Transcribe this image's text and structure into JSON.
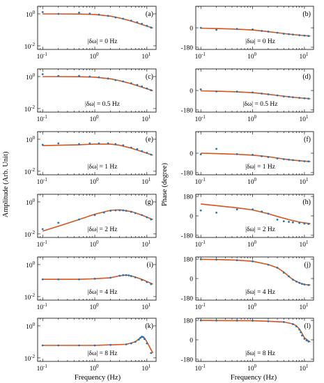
{
  "figure": {
    "ylabel_left": "Amplitude (Arb. Unit)",
    "ylabel_right": "Phase (degree)",
    "xlabel": "Frequency (Hz)",
    "x_ticks": [
      "10",
      "10",
      "10"
    ],
    "x_tick_exponents": [
      "-1",
      "0",
      "1"
    ],
    "amp_ticks": [
      "10",
      "10"
    ],
    "amp_tick_exponents": [
      "0",
      "-2"
    ],
    "phase_ticks": [
      "180",
      "0",
      "-180"
    ],
    "phase_ticks_top_only": [
      "180",
      "0"
    ],
    "colors": {
      "fit_line": "#d9531a",
      "data_points": "#1f77b4",
      "axes": "#000000"
    }
  },
  "chart_data": [
    {
      "panel": "(a)",
      "type": "line",
      "quantity": "amplitude",
      "label": "|δω| = 0 Hz",
      "xscale": "log",
      "yscale": "log",
      "xlim": [
        0.08,
        15
      ],
      "ylim": [
        0.006,
        3
      ],
      "series": [
        {
          "kind": "fit",
          "x": [
            0.1,
            0.2,
            0.5,
            1,
            2,
            3,
            5,
            8,
            13
          ],
          "values": [
            1.0,
            1.0,
            0.98,
            0.92,
            0.72,
            0.55,
            0.36,
            0.22,
            0.13
          ]
        },
        {
          "kind": "data",
          "x": [
            0.1,
            0.2,
            0.5,
            0.8,
            1.2,
            1.8,
            2.5,
            3.5,
            5,
            6.5,
            8,
            10,
            12
          ],
          "values": [
            1.3,
            1.0,
            1.2,
            1.05,
            0.9,
            0.75,
            0.6,
            0.5,
            0.38,
            0.3,
            0.24,
            0.18,
            0.14
          ]
        }
      ]
    },
    {
      "panel": "(b)",
      "type": "line",
      "quantity": "phase",
      "label": "|δω| = 0 Hz",
      "xscale": "log",
      "xlim": [
        0.08,
        15
      ],
      "ylim": [
        -200,
        200
      ],
      "series": [
        {
          "kind": "fit",
          "x": [
            0.1,
            0.2,
            0.5,
            1,
            2,
            3,
            5,
            8,
            13
          ],
          "values": [
            -3,
            -6,
            -12,
            -20,
            -35,
            -45,
            -58,
            -68,
            -76
          ]
        },
        {
          "kind": "data",
          "x": [
            0.1,
            0.2,
            0.5,
            1,
            1.5,
            2,
            3,
            4,
            5,
            6,
            8,
            10,
            12
          ],
          "values": [
            0,
            -18,
            -10,
            -15,
            -28,
            -35,
            -45,
            -55,
            -58,
            -62,
            -68,
            -72,
            -75
          ]
        }
      ]
    },
    {
      "panel": "(c)",
      "type": "line",
      "quantity": "amplitude",
      "label": "|δω| = 0.5 Hz",
      "xscale": "log",
      "yscale": "log",
      "xlim": [
        0.08,
        15
      ],
      "ylim": [
        0.006,
        3
      ],
      "series": [
        {
          "kind": "fit",
          "x": [
            0.1,
            0.2,
            0.5,
            1,
            2,
            3,
            5,
            8,
            13
          ],
          "values": [
            1.0,
            1.0,
            0.98,
            0.92,
            0.72,
            0.55,
            0.36,
            0.22,
            0.13
          ]
        },
        {
          "kind": "data",
          "x": [
            0.1,
            0.2,
            0.5,
            0.8,
            1.2,
            1.8,
            2.5,
            3.5,
            5,
            6.5,
            8,
            10,
            12
          ],
          "values": [
            1.4,
            1.1,
            1.1,
            1.0,
            0.9,
            0.75,
            0.6,
            0.5,
            0.38,
            0.3,
            0.24,
            0.18,
            0.14
          ]
        }
      ]
    },
    {
      "panel": "(d)",
      "type": "line",
      "quantity": "phase",
      "label": "|δω| = 0.5 Hz",
      "xscale": "log",
      "xlim": [
        0.08,
        15
      ],
      "ylim": [
        -200,
        200
      ],
      "series": [
        {
          "kind": "fit",
          "x": [
            0.1,
            0.2,
            0.5,
            1,
            2,
            3,
            5,
            8,
            13
          ],
          "values": [
            -3,
            -6,
            -12,
            -20,
            -35,
            -45,
            -58,
            -68,
            -76
          ]
        },
        {
          "kind": "data",
          "x": [
            0.1,
            0.2,
            0.5,
            1,
            1.5,
            2,
            3,
            4,
            5,
            6,
            8,
            10,
            12
          ],
          "values": [
            10,
            -8,
            -10,
            -18,
            -28,
            -35,
            -45,
            -55,
            -58,
            -62,
            -68,
            -72,
            -75
          ]
        }
      ]
    },
    {
      "panel": "(e)",
      "type": "line",
      "quantity": "amplitude",
      "label": "|δω| = 1 Hz",
      "xscale": "log",
      "yscale": "log",
      "xlim": [
        0.08,
        15
      ],
      "ylim": [
        0.006,
        3
      ],
      "series": [
        {
          "kind": "fit",
          "x": [
            0.1,
            0.2,
            0.5,
            1,
            2,
            3,
            5,
            8,
            13
          ],
          "values": [
            0.4,
            0.42,
            0.45,
            0.5,
            0.5,
            0.42,
            0.28,
            0.17,
            0.1
          ]
        },
        {
          "kind": "data",
          "x": [
            0.1,
            0.2,
            0.5,
            0.8,
            1.2,
            1.8,
            2.5,
            3.5,
            5,
            6.5,
            8,
            10,
            12
          ],
          "values": [
            0.45,
            0.55,
            0.5,
            0.55,
            0.55,
            0.55,
            0.5,
            0.42,
            0.3,
            0.24,
            0.18,
            0.14,
            0.11
          ]
        }
      ]
    },
    {
      "panel": "(f)",
      "type": "line",
      "quantity": "phase",
      "label": "|δω| = 1 Hz",
      "xscale": "log",
      "xlim": [
        0.08,
        15
      ],
      "ylim": [
        -200,
        200
      ],
      "series": [
        {
          "kind": "fit",
          "x": [
            0.1,
            0.2,
            0.5,
            1,
            2,
            3,
            5,
            8,
            13
          ],
          "values": [
            0,
            -4,
            -10,
            -18,
            -32,
            -45,
            -60,
            -70,
            -78
          ]
        },
        {
          "kind": "data",
          "x": [
            0.1,
            0.2,
            0.5,
            1,
            1.5,
            2,
            3,
            4,
            5,
            6,
            8,
            10,
            12
          ],
          "values": [
            -10,
            40,
            -8,
            -15,
            -28,
            -36,
            -48,
            -56,
            -60,
            -64,
            -70,
            -74,
            -76
          ]
        }
      ]
    },
    {
      "panel": "(g)",
      "type": "line",
      "quantity": "amplitude",
      "label": "|δω| = 2 Hz",
      "xscale": "log",
      "yscale": "log",
      "xlim": [
        0.08,
        15
      ],
      "ylim": [
        0.006,
        3
      ],
      "series": [
        {
          "kind": "fit",
          "x": [
            0.1,
            0.2,
            0.5,
            1,
            2,
            3,
            5,
            8,
            13
          ],
          "values": [
            0.015,
            0.03,
            0.08,
            0.17,
            0.3,
            0.32,
            0.25,
            0.15,
            0.08
          ]
        },
        {
          "kind": "data",
          "x": [
            0.1,
            0.2,
            0.5,
            1,
            1.5,
            2,
            2.5,
            3,
            3.5,
            4,
            5,
            6,
            8,
            10,
            12
          ],
          "values": [
            0.02,
            0.05,
            0.08,
            0.15,
            0.22,
            0.28,
            0.3,
            0.3,
            0.3,
            0.28,
            0.24,
            0.2,
            0.15,
            0.11,
            0.08
          ]
        }
      ]
    },
    {
      "panel": "(h)",
      "type": "line",
      "quantity": "phase",
      "label": "|δω| = 2 Hz",
      "xscale": "log",
      "xlim": [
        0.08,
        15
      ],
      "ylim": [
        -200,
        200
      ],
      "series": [
        {
          "kind": "fit",
          "x": [
            0.1,
            0.2,
            0.5,
            1,
            2,
            3,
            5,
            8,
            13
          ],
          "values": [
            110,
            95,
            75,
            55,
            20,
            -5,
            -35,
            -58,
            -72
          ]
        },
        {
          "kind": "data",
          "x": [
            0.1,
            0.2,
            0.5,
            1,
            1.5,
            2,
            3,
            4,
            5,
            6,
            8,
            10,
            12
          ],
          "values": [
            50,
            30,
            60,
            60,
            40,
            20,
            -35,
            -50,
            -55,
            -60,
            -65,
            -72,
            -75
          ]
        }
      ]
    },
    {
      "panel": "(i)",
      "type": "line",
      "quantity": "amplitude",
      "label": "|δω| = 4 Hz",
      "xscale": "log",
      "yscale": "log",
      "xlim": [
        0.08,
        15
      ],
      "ylim": [
        0.006,
        3
      ],
      "series": [
        {
          "kind": "fit",
          "x": [
            0.1,
            0.2,
            0.5,
            1,
            2,
            3,
            4,
            5,
            8,
            13
          ],
          "values": [
            0.12,
            0.12,
            0.12,
            0.13,
            0.15,
            0.2,
            0.22,
            0.2,
            0.12,
            0.06
          ]
        },
        {
          "kind": "data",
          "x": [
            0.1,
            0.2,
            0.5,
            1,
            2,
            3,
            3.5,
            4,
            4.5,
            5,
            6,
            8,
            10,
            12
          ],
          "values": [
            0.12,
            0.12,
            0.12,
            0.13,
            0.15,
            0.2,
            0.22,
            0.22,
            0.21,
            0.19,
            0.16,
            0.11,
            0.08,
            0.06
          ]
        }
      ]
    },
    {
      "panel": "(j)",
      "type": "line",
      "quantity": "phase",
      "label": "|δω| = 4 Hz",
      "xscale": "log",
      "xlim": [
        0.08,
        15
      ],
      "ylim": [
        -200,
        200
      ],
      "series": [
        {
          "kind": "fit",
          "x": [
            0.1,
            0.2,
            0.5,
            1,
            2,
            3,
            4,
            5,
            6,
            8,
            10,
            13
          ],
          "values": [
            178,
            176,
            170,
            160,
            130,
            100,
            60,
            20,
            -10,
            -40,
            -55,
            -60
          ]
        },
        {
          "kind": "data",
          "x": [
            0.1,
            0.2,
            0.5,
            1,
            2,
            3,
            4,
            5,
            6,
            7,
            8,
            9,
            10,
            12
          ],
          "values": [
            178,
            176,
            170,
            160,
            128,
            100,
            55,
            20,
            -10,
            -28,
            -40,
            -50,
            -55,
            -60
          ]
        }
      ]
    },
    {
      "panel": "(k)",
      "type": "line",
      "quantity": "amplitude",
      "label": "|δω| = 8 Hz",
      "xscale": "log",
      "yscale": "log",
      "xlim": [
        0.08,
        15
      ],
      "ylim": [
        0.006,
        3
      ],
      "series": [
        {
          "kind": "fit",
          "x": [
            0.1,
            0.2,
            0.5,
            1,
            2,
            4,
            6,
            7,
            8,
            9,
            10,
            13
          ],
          "values": [
            0.06,
            0.06,
            0.06,
            0.06,
            0.065,
            0.07,
            0.1,
            0.15,
            0.2,
            0.18,
            0.1,
            0.02
          ]
        },
        {
          "kind": "data",
          "x": [
            0.1,
            0.2,
            0.5,
            1,
            2,
            4,
            5,
            6,
            7,
            7.5,
            8,
            8.5,
            9,
            10,
            12
          ],
          "values": [
            0.06,
            0.06,
            0.06,
            0.06,
            0.065,
            0.07,
            0.08,
            0.1,
            0.14,
            0.18,
            0.21,
            0.2,
            0.15,
            0.08,
            0.02
          ]
        }
      ]
    },
    {
      "panel": "(l)",
      "type": "line",
      "quantity": "phase",
      "label": "|δω| = 8 Hz",
      "xscale": "log",
      "xlim": [
        0.08,
        15
      ],
      "ylim": [
        -200,
        200
      ],
      "series": [
        {
          "kind": "fit",
          "x": [
            0.1,
            0.2,
            0.5,
            1,
            2,
            4,
            6,
            7,
            8,
            9,
            10,
            12,
            13
          ],
          "values": [
            180,
            179,
            178,
            177,
            172,
            165,
            148,
            130,
            100,
            60,
            20,
            -10,
            -20
          ]
        },
        {
          "kind": "data",
          "x": [
            0.1,
            0.2,
            0.5,
            1,
            2,
            4,
            6,
            7,
            8,
            8.5,
            9,
            10,
            11,
            12
          ],
          "values": [
            180,
            179,
            178,
            177,
            172,
            165,
            145,
            125,
            95,
            70,
            40,
            10,
            -5,
            -15
          ]
        }
      ]
    }
  ]
}
